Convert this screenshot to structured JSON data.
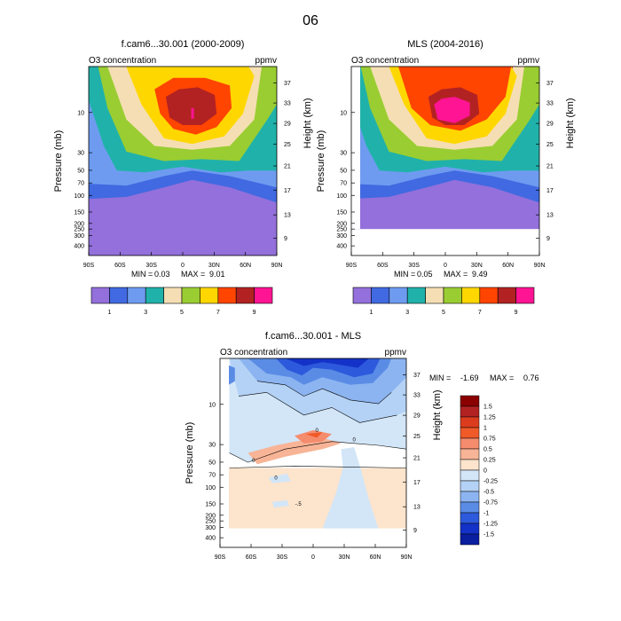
{
  "page_title": "06",
  "chart_data": [
    {
      "type": "heatmap",
      "panel": "top-left",
      "title": "f.cam6...30.001 (2000-2009)",
      "subtitle_left": "O3 concentration",
      "subtitle_right": "ppmv",
      "ylabel": "Pressure (mb)",
      "ylabel_right": "Height (km)",
      "x_ticks": [
        "90S",
        "60S",
        "30S",
        "0",
        "30N",
        "60N",
        "90N"
      ],
      "y_ticks_pressure": [
        "10",
        "30",
        "50",
        "70",
        "100",
        "150",
        "200",
        "250",
        "300",
        "400"
      ],
      "y_ticks_height": [
        "37",
        "33",
        "29",
        "25",
        "21",
        "17",
        "13",
        "9"
      ],
      "min_label": "MIN =",
      "min_value": "0.03",
      "max_label": "MAX =",
      "max_value": "9.01",
      "levels": [
        1,
        2,
        3,
        4,
        5,
        6,
        7,
        8,
        9
      ],
      "colorbar_labels": [
        "1",
        "3",
        "5",
        "7",
        "9"
      ],
      "colors": [
        "#9370db",
        "#4169e1",
        "#6e9bf0",
        "#20b2aa",
        "#f5deb3",
        "#9acd32",
        "#ffd700",
        "#ff4500",
        "#b22222",
        "#ff1493"
      ]
    },
    {
      "type": "heatmap",
      "panel": "top-right",
      "title": "MLS (2004-2016)",
      "subtitle_left": "O3 concentration",
      "subtitle_right": "ppmv",
      "ylabel": "Pressure (mb)",
      "ylabel_right": "Height (km)",
      "x_ticks": [
        "90S",
        "60S",
        "30S",
        "0",
        "30N",
        "60N",
        "90N"
      ],
      "y_ticks_pressure": [
        "10",
        "30",
        "50",
        "70",
        "100",
        "150",
        "200",
        "250",
        "300",
        "400"
      ],
      "y_ticks_height": [
        "37",
        "33",
        "29",
        "25",
        "21",
        "17",
        "13",
        "9"
      ],
      "min_label": "MIN =",
      "min_value": "0.05",
      "max_label": "MAX =",
      "max_value": "9.49",
      "levels": [
        1,
        2,
        3,
        4,
        5,
        6,
        7,
        8,
        9
      ],
      "colorbar_labels": [
        "1",
        "3",
        "5",
        "7",
        "9"
      ],
      "colors": [
        "#9370db",
        "#4169e1",
        "#6e9bf0",
        "#20b2aa",
        "#f5deb3",
        "#9acd32",
        "#ffd700",
        "#ff4500",
        "#b22222",
        "#ff1493"
      ]
    },
    {
      "type": "heatmap",
      "panel": "bottom",
      "title": "f.cam6...30.001 - MLS",
      "subtitle_left": "O3 concentration",
      "subtitle_right": "ppmv",
      "ylabel": "Pressure (mb)",
      "ylabel_right": "Height (km)",
      "x_ticks": [
        "90S",
        "60S",
        "30S",
        "0",
        "30N",
        "60N",
        "90N"
      ],
      "y_ticks_pressure": [
        "10",
        "30",
        "50",
        "70",
        "100",
        "150",
        "200",
        "250",
        "300",
        "400"
      ],
      "y_ticks_height": [
        "37",
        "33",
        "29",
        "25",
        "21",
        "17",
        "13",
        "9"
      ],
      "min_label": "MIN =",
      "min_value": "-1.69",
      "max_label": "MAX =",
      "max_value": "0.76",
      "levels": [
        -1.5,
        -1.25,
        -1,
        -0.75,
        -0.5,
        -0.25,
        0,
        0.25,
        0.5,
        0.75,
        1,
        1.25,
        1.5
      ],
      "colorbar_labels": [
        "1.5",
        "1.25",
        "1",
        "0.75",
        "0.5",
        "0.25",
        "0",
        "-0.25",
        "-0.5",
        "-0.75",
        "-1",
        "-1.25",
        "-1.5"
      ],
      "colors": [
        "#8b0000",
        "#b22222",
        "#dc3c1e",
        "#f05a28",
        "#f58c6e",
        "#f8b496",
        "#fde4cc",
        "#d2e6f8",
        "#b4d2f5",
        "#8cb4f0",
        "#5a8ce6",
        "#2d5adc",
        "#1432c8",
        "#0a1ea0"
      ],
      "contour_labels": [
        "0",
        "0",
        "0",
        "-.5",
        "0"
      ]
    }
  ]
}
